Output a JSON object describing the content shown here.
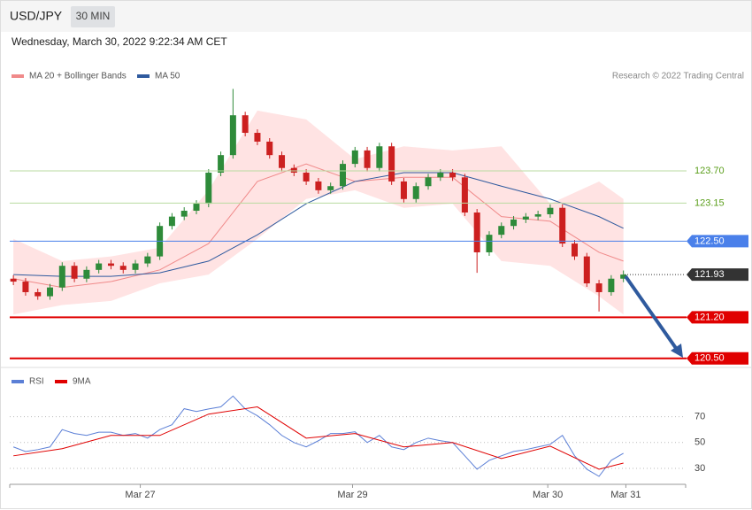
{
  "chart_data": [
    {
      "type": "candlestick",
      "title": "USD/JPY",
      "timeframe": "30 MIN",
      "subtitle": "Wednesday, March 30, 2022 9:22:34 AM CET",
      "source": "Research © 2022 Trading Central",
      "open": [
        121.86,
        121.81,
        121.63,
        121.56,
        121.71,
        122.08,
        121.86,
        122.01,
        122.12,
        122.08,
        122.01,
        122.12,
        122.24,
        122.76,
        122.92,
        123.02,
        123.14,
        123.67,
        123.97,
        124.65,
        124.35,
        124.2,
        123.97,
        123.75,
        123.67,
        123.52,
        123.37,
        123.44,
        123.82,
        124.05,
        123.75,
        124.12,
        123.52,
        123.22,
        123.44,
        123.59,
        123.67,
        123.59,
        122.99,
        122.31,
        122.61,
        122.76,
        122.87,
        122.92,
        122.96,
        123.07,
        122.46,
        122.24,
        121.78,
        121.63,
        121.86
      ],
      "high": [
        121.92,
        121.87,
        121.69,
        121.77,
        122.14,
        122.14,
        122.07,
        122.18,
        122.18,
        122.14,
        122.18,
        122.3,
        122.82,
        122.98,
        123.08,
        123.2,
        123.73,
        124.03,
        125.1,
        124.71,
        124.41,
        124.26,
        124.03,
        123.81,
        123.73,
        123.58,
        123.5,
        123.88,
        124.11,
        124.11,
        124.18,
        124.18,
        123.58,
        123.5,
        123.65,
        123.73,
        123.73,
        123.65,
        123.05,
        122.67,
        122.82,
        122.93,
        122.98,
        123.02,
        123.13,
        123.13,
        122.52,
        122.3,
        121.84,
        121.92,
        122.0
      ],
      "low": [
        121.75,
        121.57,
        121.5,
        121.5,
        121.65,
        121.8,
        121.8,
        121.95,
        122.02,
        121.95,
        121.95,
        122.06,
        122.18,
        122.7,
        122.86,
        122.96,
        123.08,
        123.61,
        123.91,
        124.29,
        124.14,
        123.91,
        123.69,
        123.61,
        123.46,
        123.31,
        123.31,
        123.38,
        123.76,
        123.69,
        123.69,
        123.46,
        123.16,
        123.16,
        123.38,
        123.53,
        123.53,
        122.93,
        121.96,
        122.25,
        122.55,
        122.7,
        122.81,
        122.86,
        122.9,
        122.4,
        122.18,
        121.72,
        121.3,
        121.57,
        121.8
      ],
      "close": [
        121.81,
        121.63,
        121.56,
        121.71,
        122.08,
        121.86,
        122.01,
        122.12,
        122.08,
        122.01,
        122.12,
        122.24,
        122.76,
        122.92,
        123.02,
        123.14,
        123.67,
        123.97,
        124.65,
        124.35,
        124.2,
        123.97,
        123.75,
        123.67,
        123.52,
        123.37,
        123.44,
        123.82,
        124.05,
        123.75,
        124.12,
        123.52,
        123.22,
        123.44,
        123.59,
        123.67,
        123.59,
        122.99,
        122.31,
        122.61,
        122.76,
        122.87,
        122.92,
        122.96,
        123.07,
        122.46,
        122.24,
        121.78,
        121.63,
        121.86,
        121.93
      ],
      "up_color": "#2e8b3a",
      "down_color": "#cc2020",
      "series": [
        {
          "name": "MA 20 + Bollinger Bands",
          "color": "#f08a8a",
          "band_color": "#ffe3e3",
          "x": [
            0,
            4,
            8,
            12,
            16,
            20,
            24,
            28,
            32,
            36,
            40,
            44,
            48,
            50
          ],
          "values": [
            121.86,
            121.71,
            121.81,
            122.01,
            122.46,
            123.52,
            123.82,
            123.52,
            123.59,
            123.59,
            122.92,
            122.84,
            122.31,
            122.16
          ],
          "upper": [
            122.54,
            122.16,
            122.24,
            122.39,
            123.37,
            124.73,
            124.58,
            123.9,
            124.12,
            124.05,
            124.12,
            123.14,
            123.52,
            123.22
          ],
          "lower": [
            121.25,
            121.41,
            121.48,
            121.78,
            121.93,
            122.54,
            123.22,
            123.37,
            123.07,
            123.14,
            122.16,
            122.08,
            121.56,
            121.25
          ]
        },
        {
          "name": "MA 50",
          "color": "#2f5a9e",
          "x": [
            0,
            4,
            8,
            12,
            16,
            20,
            24,
            28,
            32,
            36,
            40,
            44,
            48,
            50
          ],
          "values": [
            121.93,
            121.9,
            121.9,
            121.96,
            122.16,
            122.61,
            123.14,
            123.52,
            123.67,
            123.67,
            123.44,
            123.22,
            122.92,
            122.72
          ]
        }
      ],
      "levels": [
        {
          "value": 123.7,
          "label": "123.70",
          "color": "#b9dba0",
          "text_color": "#5a9e1a",
          "style": "text"
        },
        {
          "value": 123.15,
          "label": "123.15",
          "color": "#b9dba0",
          "text_color": "#5a9e1a",
          "style": "text"
        },
        {
          "value": 122.5,
          "label": "122.50",
          "color": "#4a80ea",
          "text_color": "#ffffff",
          "style": "tag"
        },
        {
          "value": 121.93,
          "label": "121.93",
          "color": "#333333",
          "text_color": "#ffffff",
          "style": "current"
        },
        {
          "value": 121.2,
          "label": "121.20",
          "color": "#e00000",
          "text_color": "#ffffff",
          "style": "tag"
        },
        {
          "value": 120.5,
          "label": "120.50",
          "color": "#e00000",
          "text_color": "#ffffff",
          "style": "tag"
        }
      ],
      "xlim": [
        -0.3,
        55.1
      ],
      "ylim": [
        120.42,
        125.56
      ],
      "xticks": [
        {
          "value": 10.4,
          "label": "Mar 27"
        },
        {
          "value": 27.8,
          "label": "Mar 29"
        },
        {
          "value": 43.8,
          "label": "Mar 30"
        },
        {
          "value": 50.2,
          "label": "Mar 31"
        }
      ]
    },
    {
      "type": "line",
      "series": [
        {
          "name": "RSI",
          "color": "#5b7fd6",
          "values": [
            46.6,
            43,
            44.5,
            46.6,
            60,
            57,
            55.5,
            58,
            58,
            55.5,
            57,
            53.4,
            60,
            63.8,
            76.2,
            74,
            76,
            77.6,
            86,
            76,
            70.7,
            63.8,
            55.5,
            50,
            46.6,
            51.4,
            57,
            57,
            58.3,
            50,
            55.5,
            46.6,
            44.5,
            50,
            53.4,
            51.4,
            50,
            39.7,
            29.3,
            36.2,
            39.7,
            43.1,
            44.5,
            46.6,
            48.6,
            55.5,
            39.7,
            29.3,
            23.8,
            36.2,
            41.7
          ]
        },
        {
          "name": "9MA",
          "color": "#e00000",
          "x": [
            0,
            4,
            8,
            12,
            16,
            20,
            24,
            28,
            32,
            36,
            40,
            44,
            48,
            50
          ],
          "values": [
            39.7,
            45.2,
            55.5,
            55.5,
            72,
            77.6,
            53.4,
            57,
            46.6,
            50,
            37.6,
            47.2,
            29.3,
            34.1
          ]
        }
      ],
      "ylim": [
        19,
        91
      ],
      "yticks": [
        70,
        50,
        30
      ],
      "grid": true
    }
  ]
}
